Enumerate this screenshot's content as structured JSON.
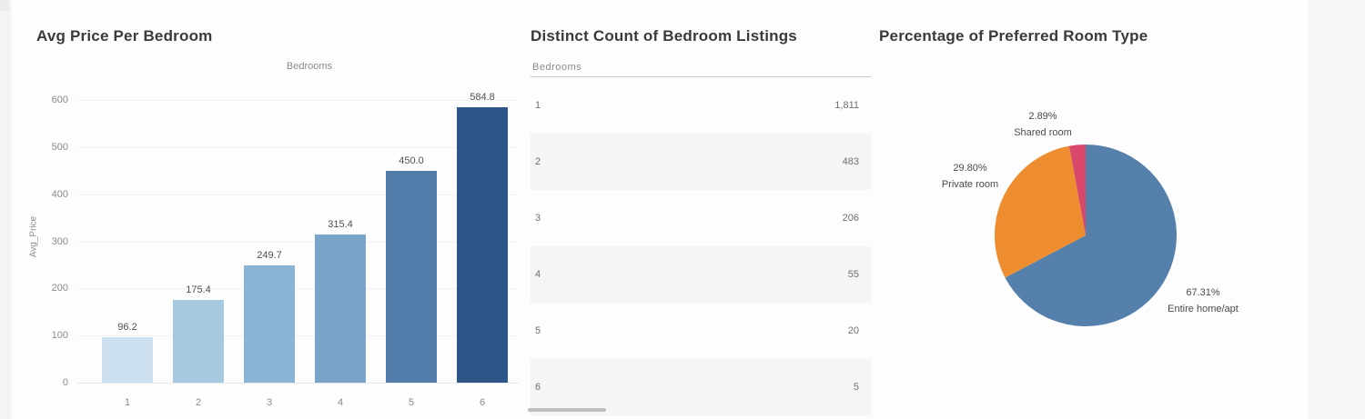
{
  "page": {
    "background": "#fdfdfe"
  },
  "chart_data": [
    {
      "type": "bar",
      "title": "Avg Price Per Bedroom",
      "column_header": "Bedrooms",
      "categories": [
        "1",
        "2",
        "3",
        "4",
        "5",
        "6"
      ],
      "values": [
        96.2,
        175.4,
        249.7,
        315.4,
        450.0,
        584.8
      ],
      "value_labels": [
        "96.2",
        "175.4",
        "249.7",
        "315.4",
        "450.0",
        "584.8"
      ],
      "xlabel": "Bedrooms",
      "ylabel": "Avg_Price",
      "ylim": [
        0,
        600
      ],
      "yticks": [
        0,
        100,
        200,
        300,
        400,
        500,
        600
      ],
      "bar_colors": [
        "#cde0ef",
        "#a6c9e0",
        "#8ab4d4",
        "#7aa4c8",
        "#527ca9",
        "#2e5587"
      ],
      "grid": true,
      "legend": "none"
    },
    {
      "type": "table",
      "title": "Distinct Count of Bedroom Listings",
      "column_header": "Bedrooms",
      "rows": [
        {
          "bedrooms": "1",
          "count": "1,811"
        },
        {
          "bedrooms": "2",
          "count": "483"
        },
        {
          "bedrooms": "3",
          "count": "206"
        },
        {
          "bedrooms": "4",
          "count": "55"
        },
        {
          "bedrooms": "5",
          "count": "20"
        },
        {
          "bedrooms": "6",
          "count": "5"
        }
      ]
    },
    {
      "type": "pie",
      "title": "Percentage of Preferred Room Type",
      "start_angle_deg": 0,
      "direction": "clockwise",
      "slices": [
        {
          "label": "Entire home/apt",
          "pct": 67.31,
          "pct_label": "67.31%",
          "color": "#5580ac"
        },
        {
          "label": "Private room",
          "pct": 29.8,
          "pct_label": "29.80%",
          "color": "#ee8d2f"
        },
        {
          "label": "Shared room",
          "pct": 2.89,
          "pct_label": "2.89%",
          "color": "#d9486b"
        }
      ]
    }
  ]
}
